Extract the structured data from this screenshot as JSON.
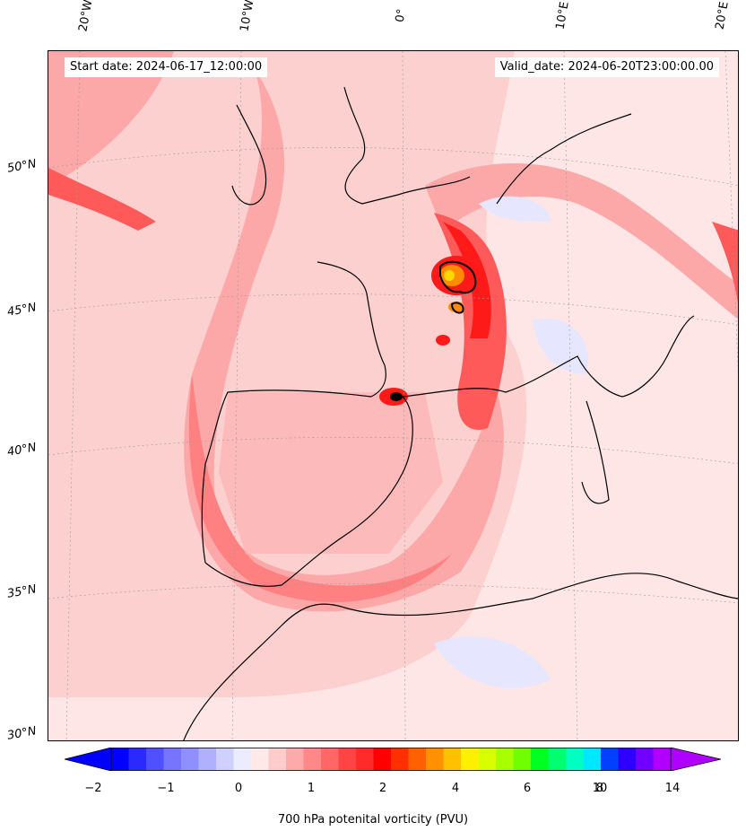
{
  "header": {
    "start_date": "Start date: 2024-06-17_12:00:00",
    "valid_date": "Valid_date: 2024-06-20T23:00:00.00"
  },
  "map": {
    "lon_labels": [
      "20°W",
      "10°W",
      "0°",
      "10°E",
      "20°E"
    ],
    "lat_labels": [
      "50°N",
      "45°N",
      "40°N",
      "35°N",
      "30°N"
    ],
    "colors": {
      "background": "#fee6e6",
      "light_pink": "#fdd0d0",
      "pink": "#fca8a8",
      "red": "#ff5a5a",
      "deep_red": "#ff1a1a",
      "orange": "#ff8c00",
      "yellow": "#ffd700",
      "pale_blue": "#e6e6ff",
      "coast": "#000000"
    }
  },
  "colorbar": {
    "caption": "700 hPa potenital vorticity (PVU)",
    "tick_labels": [
      "−2",
      "−1",
      "0",
      "1",
      "2",
      "4",
      "6",
      "8",
      "10",
      "14"
    ],
    "colors": [
      "#0000ff",
      "#2a2aff",
      "#5050ff",
      "#7575ff",
      "#8f8fff",
      "#b0b0ff",
      "#d0d0ff",
      "#ececff",
      "#ffe8e8",
      "#ffcccc",
      "#ffaaaa",
      "#ff8888",
      "#ff6666",
      "#ff4444",
      "#ff2a2a",
      "#ff0000",
      "#ff3000",
      "#ff6000",
      "#ff9000",
      "#ffc000",
      "#ffef00",
      "#d8ff00",
      "#a8ff00",
      "#70ff00",
      "#00ff20",
      "#00ff70",
      "#00ffc0",
      "#00e8ff",
      "#0040ff",
      "#3000ff",
      "#7000ff",
      "#b000ff"
    ]
  }
}
